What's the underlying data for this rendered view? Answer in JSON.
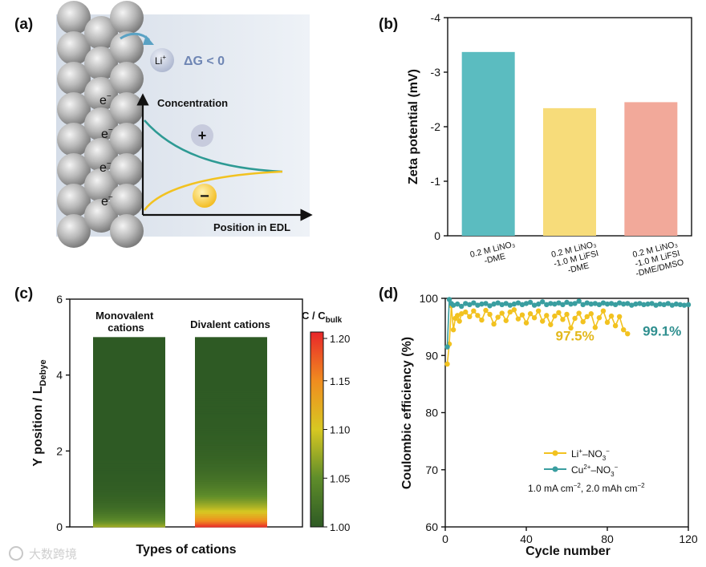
{
  "watermark": "大数跨境",
  "panel_a": {
    "letter": "(a)",
    "ion_label": "Li",
    "ion_sup": "+",
    "delta_g": "ΔG < 0",
    "electron": "e",
    "electron_sup": "−",
    "concentration_label": "Concentration",
    "position_label": "Position in EDL",
    "plus_sign": "+",
    "minus_sign": "−",
    "colors": {
      "cation_curve": "#2e9a94",
      "anion_curve": "#f2c220"
    }
  },
  "chart_data": [
    {
      "panel": "(b)",
      "type": "bar",
      "categories": [
        [
          "0.2 M LiNO₃",
          "-DME"
        ],
        [
          "0.2 M LiNO₃",
          "-1.0 M LiFSI",
          "-DME"
        ],
        [
          "0.2 M LiNO₃",
          "-1.0 M LiFSI",
          "-DME/DMSO"
        ]
      ],
      "values": [
        -3.37,
        -2.34,
        -2.45
      ],
      "ylabel": "Zeta potential (mV)",
      "ylim": [
        0,
        -4
      ],
      "yticks": [
        "0",
        "-1",
        "-2",
        "-3",
        "-4"
      ],
      "colors": [
        "#5bbcc0",
        "#f7dc7a",
        "#f2a99a"
      ]
    },
    {
      "panel": "(c)",
      "type": "heatmap",
      "categories": [
        "Monovalent cations",
        "Divalent cations"
      ],
      "category_lines": [
        [
          "Monovalent",
          "cations"
        ],
        [
          "Divalent cations"
        ]
      ],
      "xlabel": "Types of cations",
      "ylabel_main": "Y position / L",
      "ylabel_sub": "Debye",
      "ylim": [
        0,
        6
      ],
      "yticks": [
        "0",
        "2",
        "4",
        "6"
      ],
      "column_top": 5.0,
      "colorbar_title_main": "C / C",
      "colorbar_title_sub": "bulk",
      "colorbar_range": [
        1.0,
        1.2
      ],
      "colorbar_ticks": [
        "1.00",
        "1.05",
        "1.10",
        "1.15",
        "1.20"
      ],
      "series": [
        {
          "name": "Monovalent cations",
          "surface_value": 1.08,
          "decay_length": 0.35
        },
        {
          "name": "Divalent cations",
          "surface_value": 1.2,
          "decay_length": 0.6
        }
      ]
    },
    {
      "panel": "(d)",
      "type": "line",
      "xlabel": "Cycle number",
      "ylabel": "Coulombic efficiency (%)",
      "xlim": [
        0,
        120
      ],
      "ylim": [
        60,
        100
      ],
      "xticks": [
        "0",
        "40",
        "80",
        "120"
      ],
      "yticks": [
        "60",
        "70",
        "80",
        "90",
        "100"
      ],
      "series": [
        {
          "name_main": "Li",
          "name_sup1": "+",
          "name_mid": "–NO",
          "name_sub": "3",
          "name_sup2": "−",
          "color": "#f2c220",
          "x": [
            1,
            2,
            3,
            4,
            5,
            6,
            7,
            8,
            10,
            12,
            14,
            16,
            18,
            20,
            22,
            24,
            26,
            28,
            30,
            32,
            34,
            36,
            38,
            40,
            42,
            44,
            46,
            48,
            50,
            52,
            54,
            56,
            58,
            60,
            62,
            64,
            66,
            68,
            70,
            72,
            74,
            76,
            78,
            80,
            82,
            84,
            86,
            88,
            90
          ],
          "y": [
            88.5,
            92.0,
            98.7,
            94.5,
            96.5,
            97.0,
            96.0,
            97.3,
            97.6,
            96.8,
            97.8,
            97.0,
            96.2,
            97.9,
            97.2,
            95.5,
            96.7,
            97.4,
            96.1,
            97.6,
            98.0,
            96.4,
            97.1,
            95.7,
            97.3,
            96.6,
            97.8,
            96.0,
            97.0,
            95.4,
            96.9,
            97.5,
            96.3,
            97.2,
            94.8,
            96.5,
            97.4,
            95.9,
            96.8,
            97.3,
            94.9,
            96.6,
            97.8,
            95.8,
            96.9,
            95.2,
            96.8,
            94.5,
            93.8
          ]
        },
        {
          "name_main": "Cu",
          "name_sup1": "2+",
          "name_mid": "–NO",
          "name_sub": "3",
          "name_sup2": "−",
          "color": "#3a9ea0",
          "x": [
            1,
            2,
            3,
            4,
            6,
            8,
            10,
            12,
            14,
            16,
            18,
            20,
            22,
            24,
            26,
            28,
            30,
            32,
            34,
            36,
            38,
            40,
            42,
            44,
            46,
            48,
            50,
            52,
            54,
            56,
            58,
            60,
            62,
            64,
            66,
            68,
            70,
            72,
            74,
            76,
            78,
            80,
            82,
            84,
            86,
            88,
            90,
            92,
            94,
            96,
            98,
            100,
            102,
            104,
            106,
            108,
            110,
            112,
            114,
            116,
            118,
            120
          ],
          "y": [
            91.5,
            99.8,
            99.1,
            98.8,
            99.0,
            98.6,
            99.1,
            98.9,
            99.2,
            98.8,
            99.0,
            99.1,
            98.7,
            99.0,
            99.2,
            98.9,
            99.1,
            98.8,
            99.0,
            99.2,
            98.9,
            99.1,
            99.3,
            98.8,
            99.0,
            99.4,
            98.9,
            99.1,
            99.0,
            99.2,
            98.9,
            99.3,
            99.0,
            99.1,
            99.5,
            98.9,
            99.2,
            99.0,
            99.1,
            98.9,
            99.2,
            99.0,
            99.1,
            98.9,
            99.2,
            99.0,
            99.1,
            98.8,
            99.0,
            99.1,
            98.9,
            99.0,
            99.1,
            98.8,
            99.0,
            98.9,
            99.1,
            98.8,
            99.0,
            98.9,
            98.8,
            98.9
          ]
        }
      ],
      "annotations": [
        {
          "text": "97.5%",
          "x": 64,
          "y": 93.5,
          "color": "#e3b81c"
        },
        {
          "text": "99.1%",
          "x": 107,
          "y": 94.3,
          "color": "#2f8f8f"
        }
      ],
      "condition_text_parts": [
        "1.0 mA cm",
        "−2",
        ", 2.0 mAh cm",
        "−2"
      ]
    }
  ]
}
